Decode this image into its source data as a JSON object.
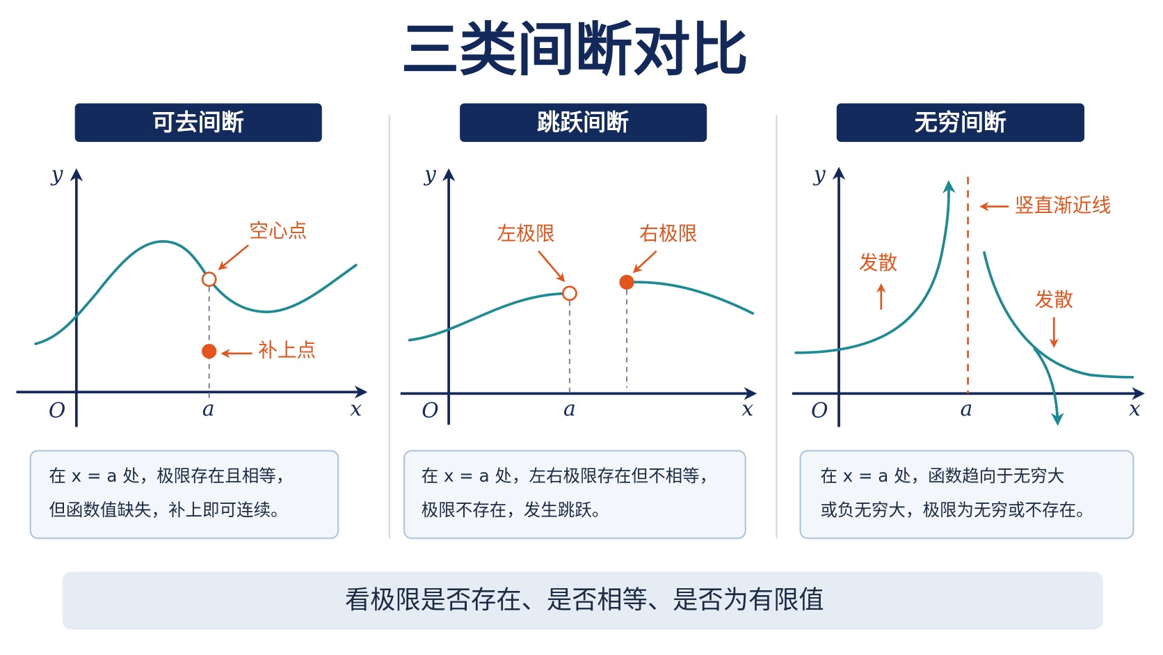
{
  "title": "三类间断对比",
  "panels": [
    {
      "heading": "可去间断",
      "axis": {
        "y": "y",
        "x": "x",
        "origin": "O",
        "a": "a"
      },
      "annotations": [
        "空心点",
        "补上点"
      ],
      "description": [
        "在 x = a 处，极限存在且相等，",
        "但函数值缺失，补上即可连续。"
      ]
    },
    {
      "heading": "跳跃间断",
      "axis": {
        "y": "y",
        "x": "x",
        "origin": "O",
        "a": "a"
      },
      "annotations": [
        "左极限",
        "右极限"
      ],
      "description": [
        "在 x = a 处，左右极限存在但不相等，",
        "极限不存在，发生跳跃。"
      ]
    },
    {
      "heading": "无穷间断",
      "axis": {
        "y": "y",
        "x": "x",
        "origin": "O",
        "a": "a"
      },
      "annotations": [
        "竖直渐近线",
        "发散",
        "发散"
      ],
      "description": [
        "在 x = a 处，函数趋向于无穷大",
        "或负无穷大，极限为无穷或不存在。"
      ]
    }
  ],
  "footer": "看极限是否存在、是否相等、是否为有限值"
}
